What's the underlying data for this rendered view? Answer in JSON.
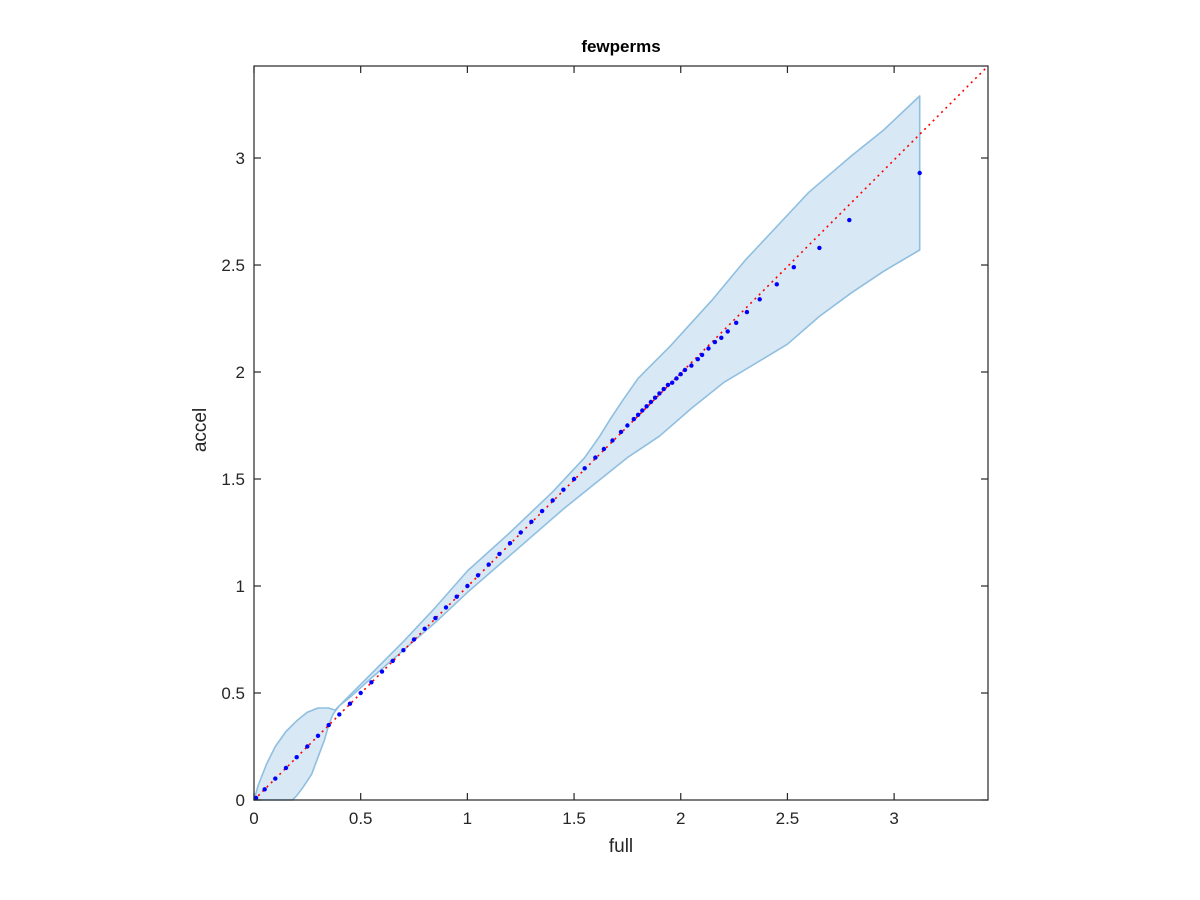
{
  "chart_data": {
    "type": "scatter",
    "title": "fewperms",
    "xlabel": "full",
    "ylabel": "accel",
    "xlim": [
      0,
      3.44
    ],
    "ylim": [
      0,
      3.43
    ],
    "xticks": [
      0,
      0.5,
      1,
      1.5,
      2,
      2.5,
      3
    ],
    "xtick_labels": [
      "0",
      "0.5",
      "1",
      "1.5",
      "2",
      "2.5",
      "3"
    ],
    "yticks": [
      0,
      0.5,
      1,
      1.5,
      2,
      2.5,
      3
    ],
    "ytick_labels": [
      "0",
      "0.5",
      "1",
      "1.5",
      "2",
      "2.5",
      "3"
    ],
    "grid": false,
    "box": true,
    "reference_line": {
      "style": "dotted",
      "color": "#ff0000",
      "from": [
        0,
        0
      ],
      "to": [
        3.44,
        3.43
      ]
    },
    "band": {
      "color_fill": "#d9e8f5",
      "color_edge": "#8fbfe0",
      "upper": [
        [
          0,
          0
        ],
        [
          0.02,
          0.07
        ],
        [
          0.06,
          0.17
        ],
        [
          0.1,
          0.25
        ],
        [
          0.15,
          0.32
        ],
        [
          0.2,
          0.37
        ],
        [
          0.25,
          0.41
        ],
        [
          0.3,
          0.43
        ],
        [
          0.35,
          0.43
        ],
        [
          0.38,
          0.42
        ],
        [
          0.45,
          0.49
        ],
        [
          0.55,
          0.59
        ],
        [
          0.7,
          0.74
        ],
        [
          0.85,
          0.9
        ],
        [
          1.0,
          1.07
        ],
        [
          1.2,
          1.25
        ],
        [
          1.4,
          1.44
        ],
        [
          1.55,
          1.6
        ],
        [
          1.62,
          1.7
        ],
        [
          1.67,
          1.78
        ],
        [
          1.73,
          1.87
        ],
        [
          1.8,
          1.97
        ],
        [
          1.85,
          2.02
        ],
        [
          1.95,
          2.12
        ],
        [
          2.05,
          2.23
        ],
        [
          2.15,
          2.34
        ],
        [
          2.3,
          2.52
        ],
        [
          2.45,
          2.68
        ],
        [
          2.6,
          2.84
        ],
        [
          2.8,
          3.01
        ],
        [
          2.95,
          3.13
        ],
        [
          3.12,
          3.29
        ]
      ],
      "lower": [
        [
          3.12,
          2.57
        ],
        [
          2.95,
          2.47
        ],
        [
          2.8,
          2.37
        ],
        [
          2.65,
          2.26
        ],
        [
          2.5,
          2.13
        ],
        [
          2.35,
          2.04
        ],
        [
          2.2,
          1.95
        ],
        [
          2.05,
          1.83
        ],
        [
          1.9,
          1.7
        ],
        [
          1.75,
          1.6
        ],
        [
          1.6,
          1.48
        ],
        [
          1.45,
          1.36
        ],
        [
          1.3,
          1.23
        ],
        [
          1.15,
          1.1
        ],
        [
          1.0,
          0.97
        ],
        [
          0.85,
          0.83
        ],
        [
          0.7,
          0.7
        ],
        [
          0.55,
          0.57
        ],
        [
          0.45,
          0.48
        ],
        [
          0.4,
          0.44
        ],
        [
          0.37,
          0.4
        ],
        [
          0.35,
          0.35
        ],
        [
          0.33,
          0.28
        ],
        [
          0.3,
          0.2
        ],
        [
          0.27,
          0.12
        ],
        [
          0.23,
          0.06
        ],
        [
          0.2,
          0.02
        ],
        [
          0.18,
          0
        ]
      ]
    },
    "series": [
      {
        "color": "#0000ff",
        "marker": "dot",
        "points": [
          [
            0.01,
            0.01
          ],
          [
            0.05,
            0.05
          ],
          [
            0.1,
            0.1
          ],
          [
            0.15,
            0.15
          ],
          [
            0.2,
            0.2
          ],
          [
            0.25,
            0.25
          ],
          [
            0.3,
            0.3
          ],
          [
            0.35,
            0.35
          ],
          [
            0.4,
            0.4
          ],
          [
            0.45,
            0.45
          ],
          [
            0.5,
            0.5
          ],
          [
            0.55,
            0.55
          ],
          [
            0.6,
            0.6
          ],
          [
            0.65,
            0.65
          ],
          [
            0.7,
            0.7
          ],
          [
            0.75,
            0.75
          ],
          [
            0.8,
            0.8
          ],
          [
            0.85,
            0.85
          ],
          [
            0.9,
            0.9
          ],
          [
            0.95,
            0.95
          ],
          [
            1.0,
            1.0
          ],
          [
            1.05,
            1.05
          ],
          [
            1.1,
            1.1
          ],
          [
            1.15,
            1.15
          ],
          [
            1.2,
            1.2
          ],
          [
            1.25,
            1.25
          ],
          [
            1.3,
            1.3
          ],
          [
            1.35,
            1.35
          ],
          [
            1.4,
            1.4
          ],
          [
            1.45,
            1.45
          ],
          [
            1.5,
            1.5
          ],
          [
            1.55,
            1.55
          ],
          [
            1.6,
            1.6
          ],
          [
            1.64,
            1.64
          ],
          [
            1.68,
            1.68
          ],
          [
            1.72,
            1.72
          ],
          [
            1.75,
            1.75
          ],
          [
            1.78,
            1.78
          ],
          [
            1.8,
            1.8
          ],
          [
            1.82,
            1.82
          ],
          [
            1.84,
            1.84
          ],
          [
            1.86,
            1.86
          ],
          [
            1.88,
            1.88
          ],
          [
            1.9,
            1.9
          ],
          [
            1.92,
            1.92
          ],
          [
            1.94,
            1.94
          ],
          [
            1.96,
            1.95
          ],
          [
            1.98,
            1.97
          ],
          [
            2.0,
            1.99
          ],
          [
            2.02,
            2.01
          ],
          [
            2.05,
            2.03
          ],
          [
            2.08,
            2.06
          ],
          [
            2.1,
            2.08
          ],
          [
            2.13,
            2.11
          ],
          [
            2.16,
            2.14
          ],
          [
            2.19,
            2.16
          ],
          [
            2.22,
            2.19
          ],
          [
            2.26,
            2.23
          ],
          [
            2.31,
            2.28
          ],
          [
            2.37,
            2.34
          ],
          [
            2.45,
            2.41
          ],
          [
            2.53,
            2.49
          ],
          [
            2.65,
            2.58
          ],
          [
            2.79,
            2.71
          ],
          [
            3.12,
            2.93
          ]
        ]
      }
    ]
  }
}
